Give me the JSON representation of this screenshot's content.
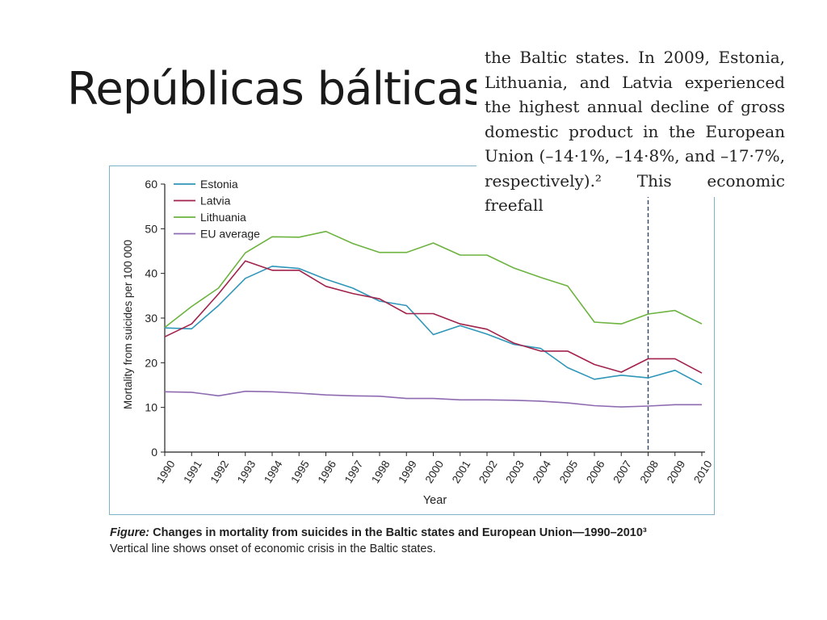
{
  "slide": {
    "title": "Repúblicas bálticas"
  },
  "quote": {
    "text": "the Baltic states. In 2009, Estonia, Lithuania, and Latvia experienced the highest annual decline of gross domestic product in the European Union (–14·1%, –14·8%, and –17·7%, respectively).² This economic freefall"
  },
  "caption": {
    "label": "Figure:",
    "title": " Changes in mortality from suicides in the Baltic states and European Union—1990–2010³",
    "note": "Vertical line shows onset of economic crisis in the Baltic states."
  },
  "chart_data": {
    "type": "line",
    "xlabel": "Year",
    "ylabel": "Mortality from suicides per 100 000",
    "ylim": [
      0,
      60
    ],
    "yticks": [
      0,
      10,
      20,
      30,
      40,
      50,
      60
    ],
    "x": [
      1990,
      1991,
      1992,
      1993,
      1994,
      1995,
      1996,
      1997,
      1998,
      1999,
      2000,
      2001,
      2002,
      2003,
      2004,
      2005,
      2006,
      2007,
      2008,
      2009,
      2010
    ],
    "legend_position": "top-left",
    "grid": false,
    "vertical_line": {
      "x": 2008,
      "style": "dashed",
      "color": "#2d4a6b"
    },
    "series": [
      {
        "name": "Estonia",
        "color": "#2e96b8",
        "values": [
          27.8,
          27.6,
          32.8,
          38.9,
          41.6,
          41.1,
          38.7,
          36.7,
          33.8,
          32.8,
          26.3,
          28.3,
          26.4,
          24.1,
          23.2,
          18.9,
          16.3,
          17.2,
          16.6,
          18.3,
          15.1
        ]
      },
      {
        "name": "Latvia",
        "color": "#a1234c",
        "values": [
          25.8,
          28.7,
          35.4,
          42.8,
          40.7,
          40.7,
          37.1,
          35.5,
          34.3,
          31.0,
          31.0,
          28.7,
          27.5,
          24.4,
          22.6,
          22.6,
          19.6,
          17.9,
          20.9,
          20.9,
          17.7
        ]
      },
      {
        "name": "Lithuania",
        "color": "#6cb33f",
        "values": [
          27.9,
          32.6,
          36.7,
          44.6,
          48.2,
          48.1,
          49.4,
          46.7,
          44.7,
          44.7,
          46.8,
          44.1,
          44.1,
          41.2,
          39.1,
          37.2,
          29.1,
          28.7,
          30.9,
          31.7,
          28.7
        ]
      },
      {
        "name": "EU average",
        "color": "#8e6bb0",
        "values": [
          13.5,
          13.4,
          12.6,
          13.6,
          13.5,
          13.2,
          12.8,
          12.6,
          12.5,
          12.0,
          12.0,
          11.7,
          11.7,
          11.6,
          11.4,
          11.0,
          10.4,
          10.1,
          10.3,
          10.6,
          10.6
        ]
      }
    ]
  }
}
